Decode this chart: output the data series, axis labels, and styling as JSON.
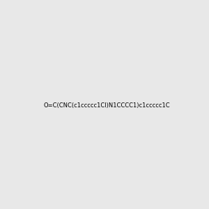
{
  "smiles": "O=C(CNC(c1ccccc1Cl)N1CCCC1)c1ccccc1C",
  "image_size": 300,
  "background_color": "#e8e8e8"
}
